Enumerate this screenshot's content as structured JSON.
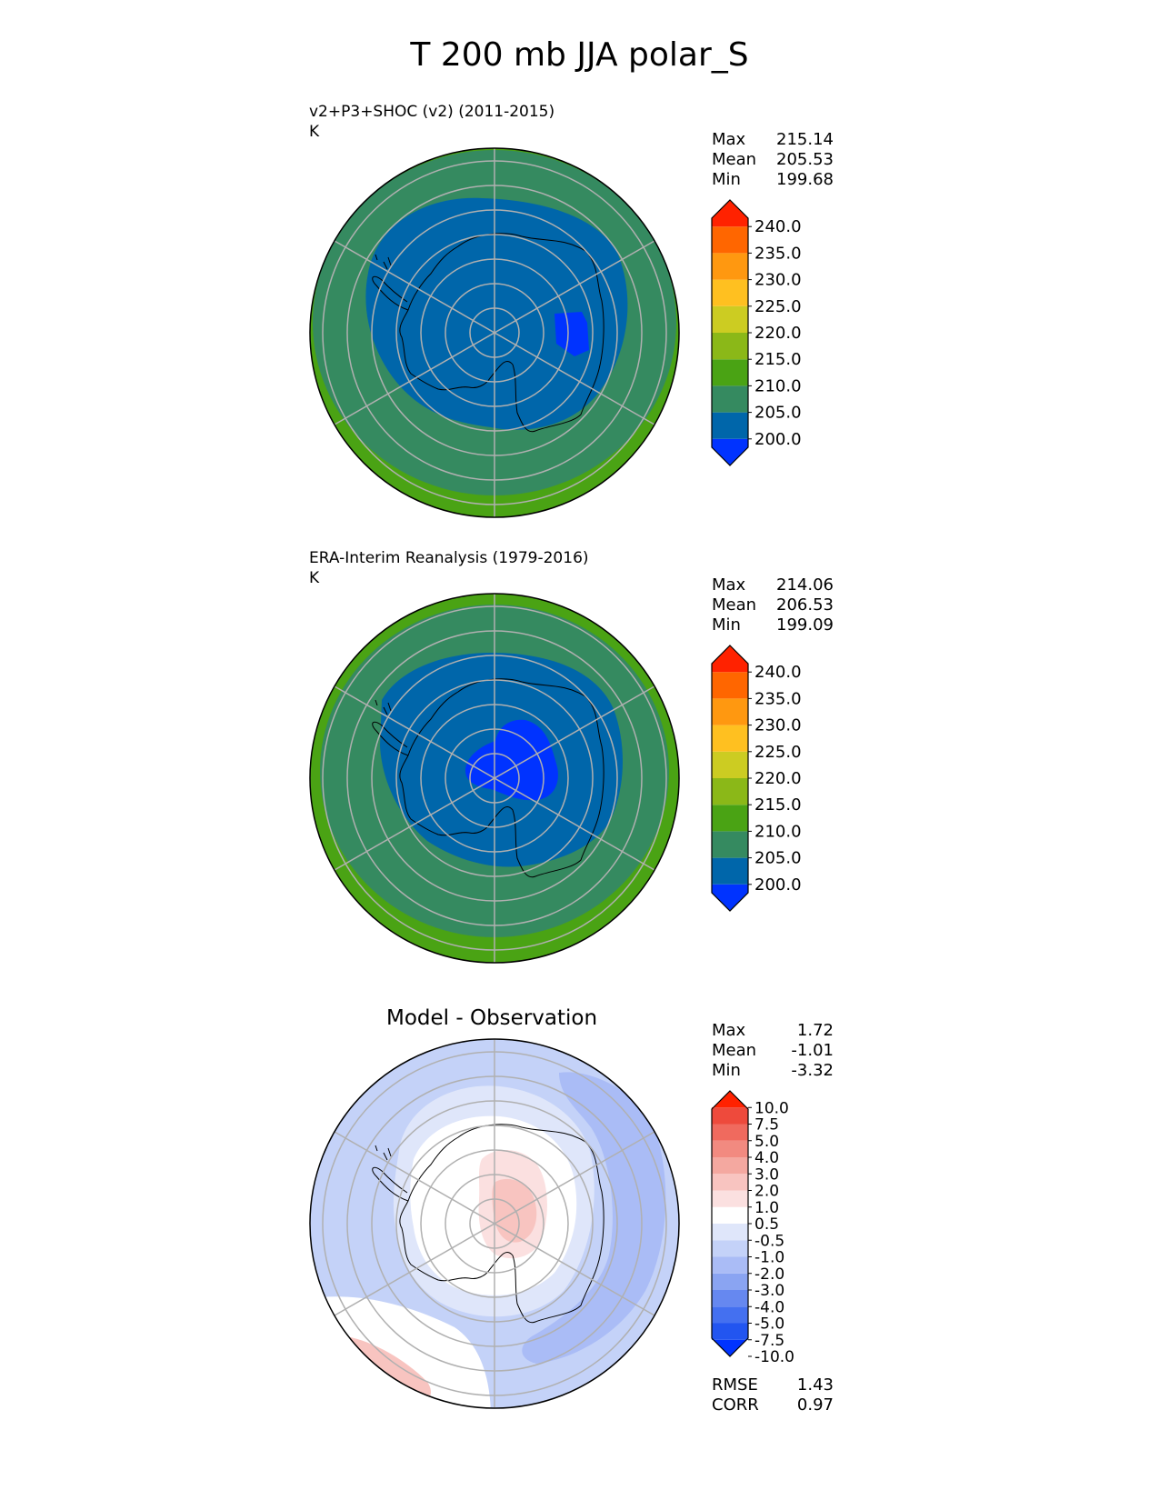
{
  "title": "T 200 mb JJA polar_S",
  "panels": [
    {
      "subtitle": "v2+P3+SHOC (v2) (2011-2015)",
      "units": "K",
      "stats": [
        {
          "label": "Max",
          "value": "215.14"
        },
        {
          "label": "Mean",
          "value": "205.53"
        },
        {
          "label": "Min",
          "value": "199.68"
        }
      ],
      "colorbar": {
        "ticks": [
          "240.0",
          "235.0",
          "230.0",
          "225.0",
          "220.0",
          "215.0",
          "210.0",
          "205.0",
          "200.0"
        ],
        "colors": [
          "#0033ff",
          "#0066aa",
          "#358a60",
          "#4aa314",
          "#8bb818",
          "#cccc22",
          "#ffc020",
          "#ff9810",
          "#ff6600",
          "#ff2200"
        ]
      }
    },
    {
      "subtitle": "ERA-Interim Reanalysis (1979-2016)",
      "units": "K",
      "stats": [
        {
          "label": "Max",
          "value": "214.06"
        },
        {
          "label": "Mean",
          "value": "206.53"
        },
        {
          "label": "Min",
          "value": "199.09"
        }
      ],
      "colorbar": {
        "ticks": [
          "240.0",
          "235.0",
          "230.0",
          "225.0",
          "220.0",
          "215.0",
          "210.0",
          "205.0",
          "200.0"
        ],
        "colors": [
          "#0033ff",
          "#0066aa",
          "#358a60",
          "#4aa314",
          "#8bb818",
          "#cccc22",
          "#ffc020",
          "#ff9810",
          "#ff6600",
          "#ff2200"
        ]
      }
    },
    {
      "subtitle": "Model - Observation",
      "stats": [
        {
          "label": "Max",
          "value": "1.72"
        },
        {
          "label": "Mean",
          "value": "-1.01"
        },
        {
          "label": "Min",
          "value": "-3.32"
        }
      ],
      "colorbar": {
        "ticks": [
          "10.0",
          "7.5",
          "5.0",
          "4.0",
          "3.0",
          "2.0",
          "1.0",
          "0.5",
          "-0.5",
          "-1.0",
          "-2.0",
          "-3.0",
          "-4.0",
          "-5.0",
          "-7.5",
          "-10.0"
        ],
        "colors": [
          "#0033ff",
          "#2255f0",
          "#4470f0",
          "#6688f0",
          "#8aa4f2",
          "#aabcf6",
          "#c4d2f8",
          "#dfe6fa",
          "#ffffff",
          "#fbe0e0",
          "#f8c4c0",
          "#f4a8a0",
          "#f28a80",
          "#f06a5e",
          "#ee4a3c",
          "#ff2200"
        ]
      },
      "footer": [
        {
          "label": "RMSE",
          "value": "1.43"
        },
        {
          "label": "CORR",
          "value": "0.97"
        }
      ]
    }
  ]
}
